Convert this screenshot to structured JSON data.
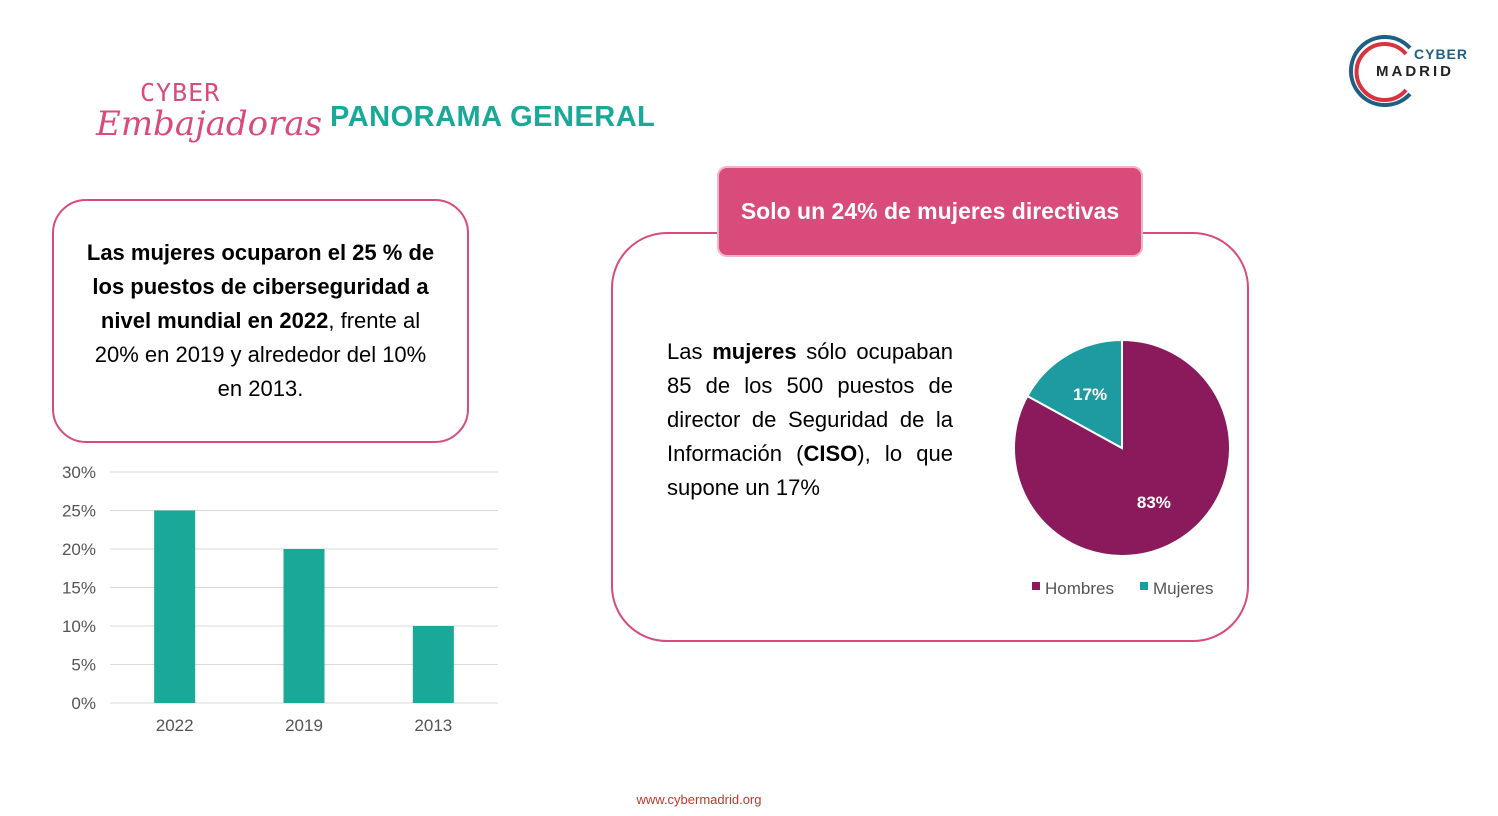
{
  "logos": {
    "cyber_embajadoras": {
      "line1": "CYBER",
      "line2": "Embajadoras"
    },
    "cybermadrid": {
      "line1": "CYBER",
      "line2": "MADRID"
    }
  },
  "header": {
    "title": "PANORAMA GENERAL"
  },
  "left_box": {
    "bold_text": "Las mujeres ocuparon el 25 % de los puestos de ciberseguridad a nivel mundial en 2022",
    "normal_text": ", frente al 20% en 2019 y alrededor del 10% en 2013."
  },
  "right_box": {
    "header": "Solo un 24% de mujeres directivas",
    "text_part1": "Las ",
    "text_bold1": "mujeres",
    "text_part2": " sólo ocupaban 85 de los 500 puestos de director de Seguridad de la Información (",
    "text_bold2": "CISO",
    "text_part3": "), lo que supone un 17%"
  },
  "footer": {
    "url": "www.cybermadrid.org"
  },
  "colors": {
    "accent_pink": "#d84b7a",
    "teal": "#1aa899",
    "hombres": "#8a1a5c",
    "mujeres": "#1e9ba1"
  },
  "chart_data": [
    {
      "type": "bar",
      "categories": [
        "2022",
        "2019",
        "2013"
      ],
      "values": [
        0.25,
        0.2,
        0.1
      ],
      "yticks": [
        "0%",
        "5%",
        "10%",
        "15%",
        "20%",
        "25%",
        "30%"
      ],
      "ylim": [
        0,
        0.3
      ],
      "grid": true,
      "color": "#1aa899"
    },
    {
      "type": "pie",
      "slices": [
        {
          "name": "Hombres",
          "value": 83,
          "label": "83%",
          "color": "#8a1a5c"
        },
        {
          "name": "Mujeres",
          "value": 17,
          "label": "17%",
          "color": "#1e9ba1"
        }
      ],
      "legend": "bottom"
    }
  ]
}
